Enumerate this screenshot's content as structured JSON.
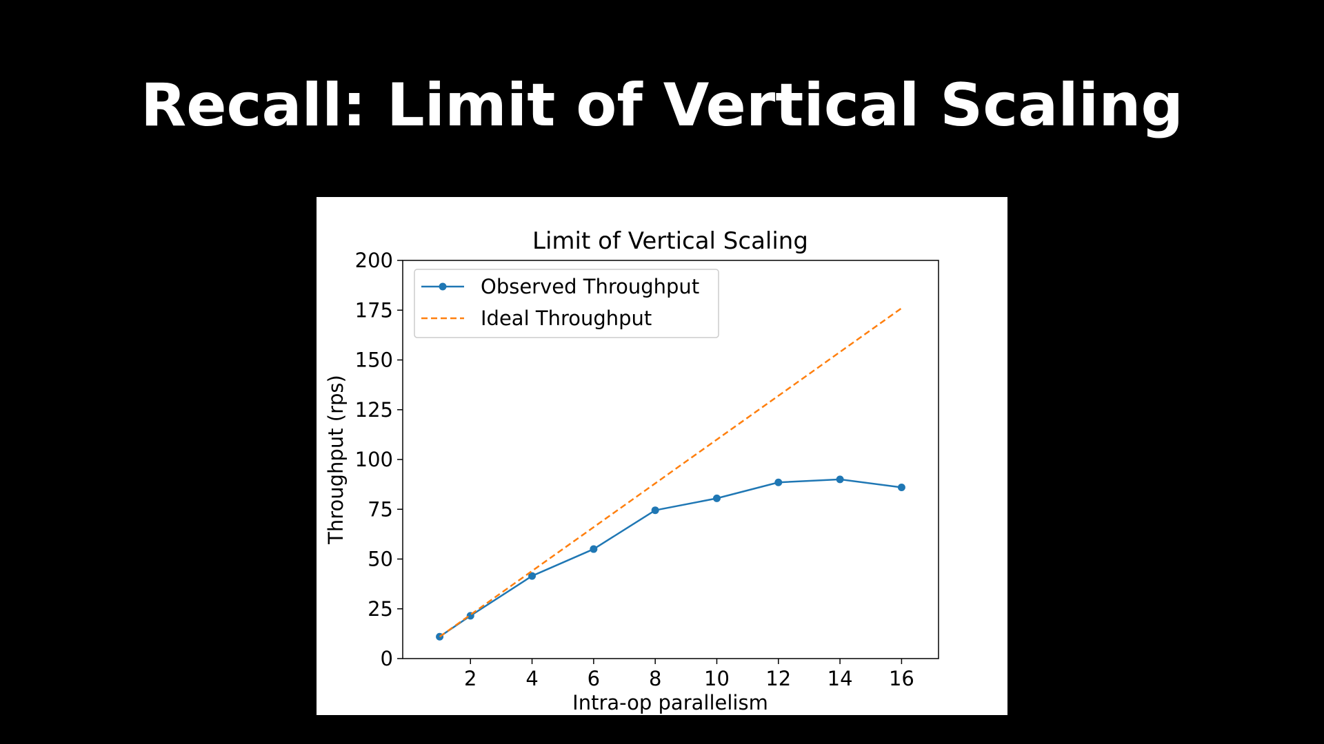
{
  "slide": {
    "title": "Recall: Limit of Vertical Scaling"
  },
  "chart_data": {
    "type": "line",
    "title": "Limit of Vertical Scaling",
    "xlabel": "Intra-op parallelism",
    "ylabel": "Throughput (rps)",
    "xlim": [
      -0.2,
      17.2
    ],
    "ylim": [
      0,
      200
    ],
    "x_ticks": [
      2,
      4,
      6,
      8,
      10,
      12,
      14,
      16
    ],
    "y_ticks": [
      0,
      25,
      50,
      75,
      100,
      125,
      150,
      175,
      200
    ],
    "grid": false,
    "legend_position": "top-left",
    "series": [
      {
        "name": "Observed Throughput",
        "style": "solid-with-markers",
        "color": "#1f77b4",
        "x": [
          1,
          2,
          4,
          6,
          8,
          10,
          12,
          14,
          16
        ],
        "values": [
          11,
          21.5,
          41.5,
          55,
          74.5,
          80.5,
          88.5,
          90,
          86
        ]
      },
      {
        "name": "Ideal Throughput",
        "style": "dashed",
        "color": "#ff7f0e",
        "x": [
          1,
          2,
          4,
          6,
          8,
          10,
          12,
          14,
          16
        ],
        "values": [
          11,
          22,
          44,
          66,
          88,
          110,
          132,
          154,
          176
        ]
      }
    ]
  }
}
